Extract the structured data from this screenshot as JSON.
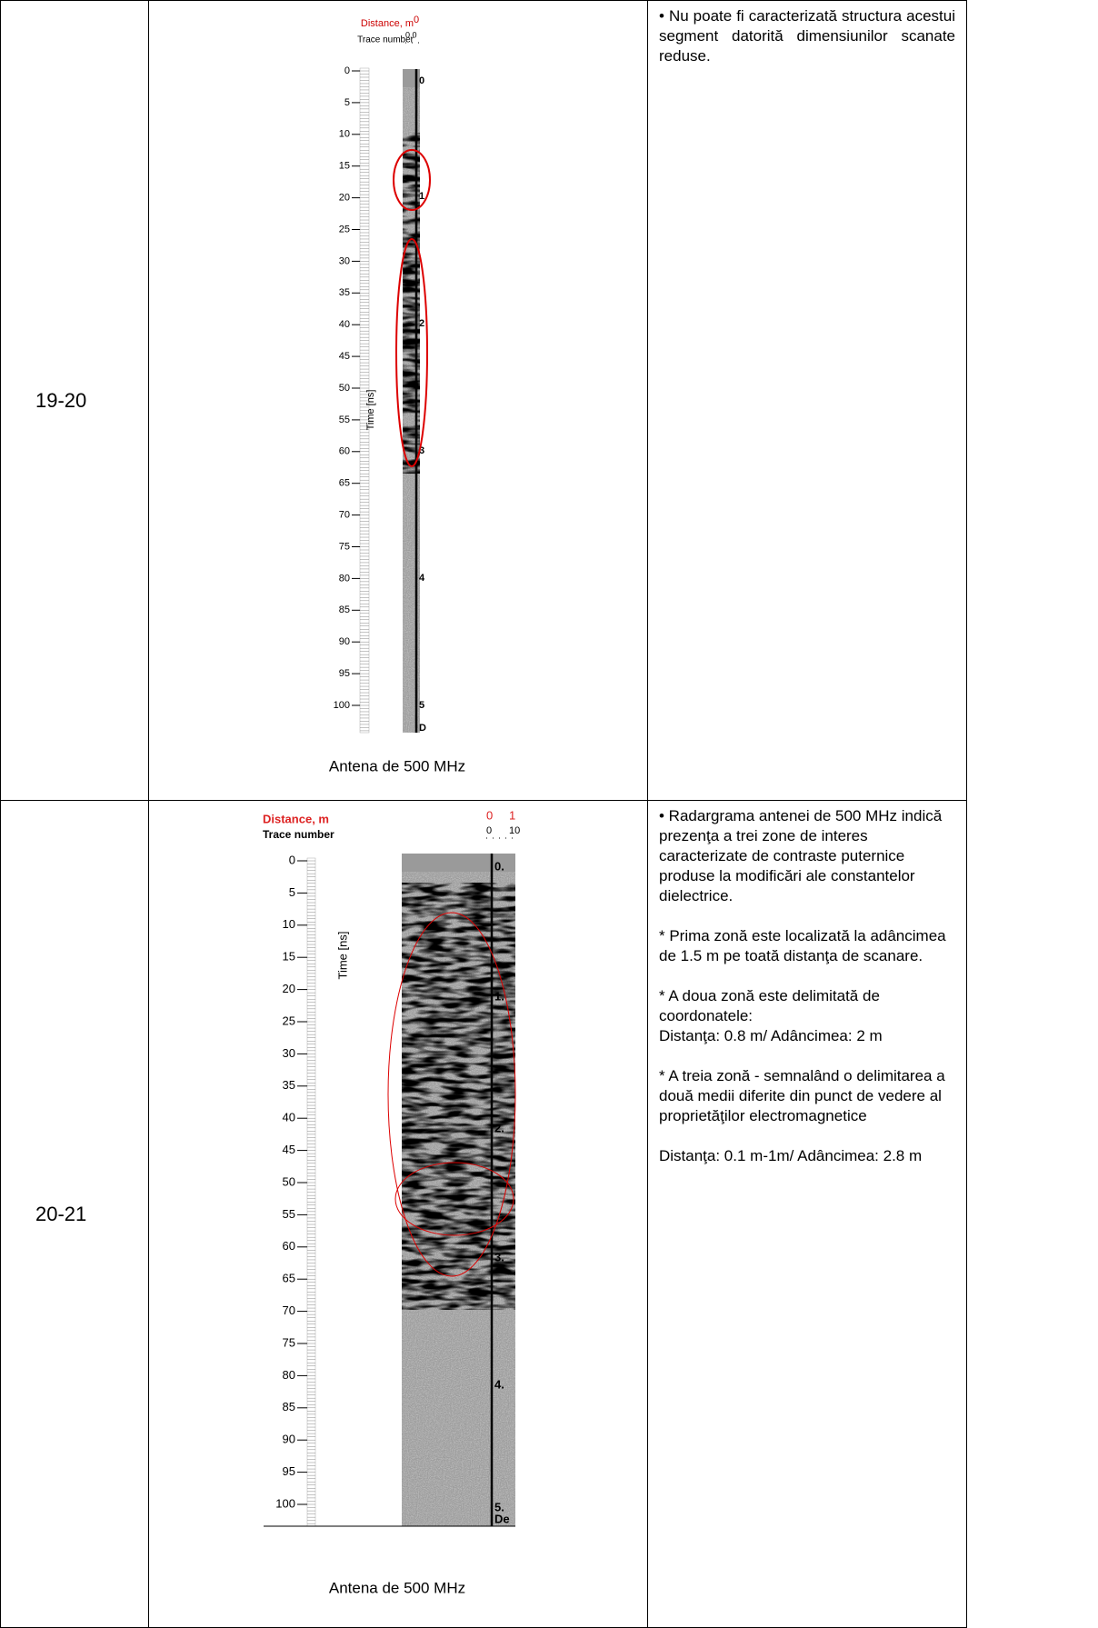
{
  "table": {
    "rows": [
      {
        "segment": "19-20",
        "radargram": {
          "distance_label": "Distance, m",
          "distance_ticks": [
            "0"
          ],
          "trace_label": "Trace number",
          "trace_ticks": [
            "0.0"
          ],
          "time_ticks": [
            0,
            5,
            10,
            15,
            20,
            25,
            30,
            35,
            40,
            45,
            50,
            55,
            60,
            65,
            70,
            75,
            80,
            85,
            90,
            95,
            100
          ],
          "time_label": "Time [ns]",
          "depth_ticks": [
            "0",
            "1",
            "2",
            "3",
            "4",
            "5",
            "D"
          ]
        },
        "caption": "Antena de 500 MHz",
        "notes": [
          "• Nu poate fi caracterizată structura acestui segment datorită dimensiunilor scanate reduse."
        ]
      },
      {
        "segment": "20-21",
        "radargram": {
          "distance_label": "Distance, m",
          "distance_ticks": [
            "0",
            "1"
          ],
          "trace_label": "Trace number",
          "trace_ticks": [
            "0",
            "10"
          ],
          "time_ticks": [
            0,
            5,
            10,
            15,
            20,
            25,
            30,
            35,
            40,
            45,
            50,
            55,
            60,
            65,
            70,
            75,
            80,
            85,
            90,
            95,
            100
          ],
          "time_label": "Time [ns]",
          "depth_ticks": [
            "0.",
            "1.",
            "2.",
            "3.",
            "4.",
            "5.",
            "De"
          ]
        },
        "caption": "Antena de 500 MHz",
        "notes": [
          "• Radargrama antenei de 500 MHz indică prezenţa a trei zone de interes caracterizate de contraste puternice produse la modificări ale constantelor dielectrice.",
          "* Prima zonă este localizată la adâncimea de 1.5 m pe toată distanţa de scanare.",
          "* A doua zonă este delimitată de coordonatele:\nDistanţa:  0.8 m/ Adâncimea: 2 m",
          "* A treia zonă - semnalând o delimitarea a două medii diferite din punct de vedere al proprietăţilor electromagnetice",
          "Distanţa:  0.1 m-1m/ Adâncimea: 2.8 m"
        ]
      }
    ]
  }
}
